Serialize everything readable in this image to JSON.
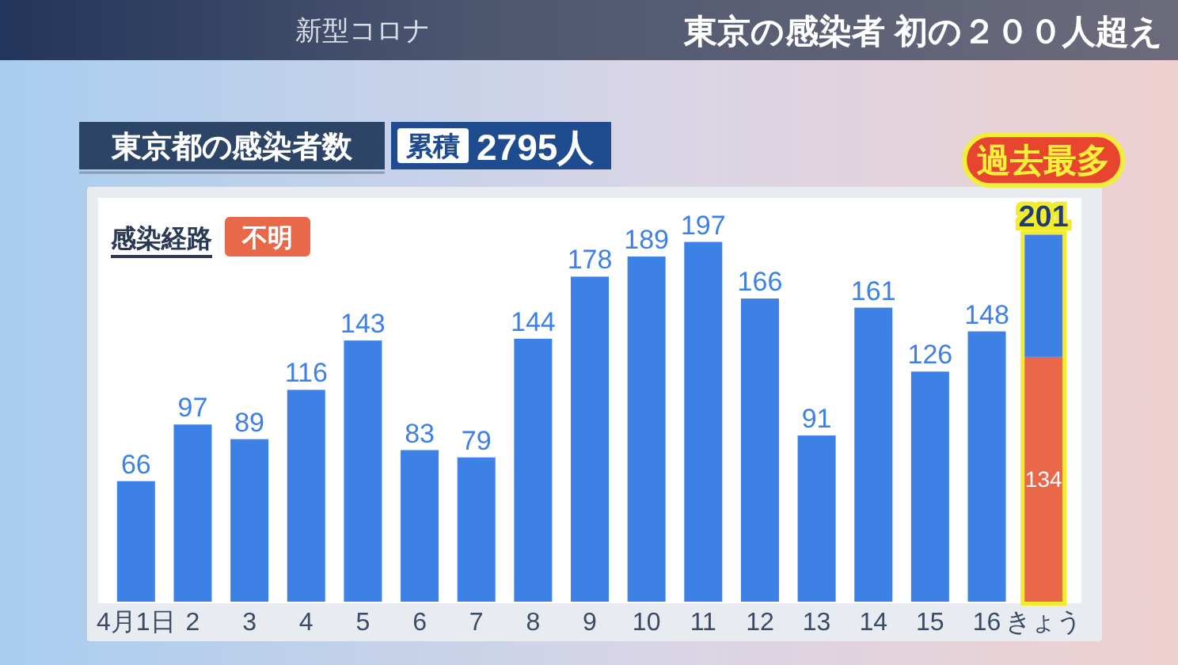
{
  "chart_data": {
    "type": "bar",
    "title": "東京都の感染者数",
    "stacked": true,
    "legend": "top left",
    "legend_title": "感染経路",
    "categories": [
      "4月1日",
      "2",
      "3",
      "4",
      "5",
      "6",
      "7",
      "8",
      "9",
      "10",
      "11",
      "12",
      "13",
      "14",
      "15",
      "16",
      "きょう"
    ],
    "series": [
      {
        "name": "不明",
        "color": "#e8684a",
        "values": [
          null,
          null,
          null,
          null,
          null,
          null,
          null,
          null,
          null,
          null,
          null,
          null,
          null,
          null,
          null,
          null,
          134
        ],
        "value_labels": [
          null,
          null,
          null,
          null,
          null,
          null,
          null,
          null,
          null,
          null,
          null,
          null,
          null,
          null,
          null,
          null,
          "134"
        ]
      },
      {
        "color": "#3d80e6",
        "values": [
          66,
          97,
          89,
          116,
          143,
          83,
          79,
          144,
          178,
          189,
          197,
          166,
          91,
          161,
          126,
          148,
          67
        ],
        "value_labels": [
          "66",
          "97",
          "89",
          "116",
          "143",
          "83",
          "79",
          "144",
          "178",
          "189",
          "197",
          "166",
          "91",
          "161",
          "126",
          "148",
          null
        ]
      }
    ],
    "totals": [
      null,
      null,
      null,
      null,
      null,
      null,
      null,
      null,
      null,
      null,
      null,
      null,
      null,
      null,
      null,
      null,
      "201"
    ],
    "annotations": [
      "新型コロナ",
      "東京の感染者 初の２００人超え",
      "累積",
      "2795人",
      {
        "text": "過去最多",
        "x": "きょう",
        "y": 201
      }
    ]
  }
}
